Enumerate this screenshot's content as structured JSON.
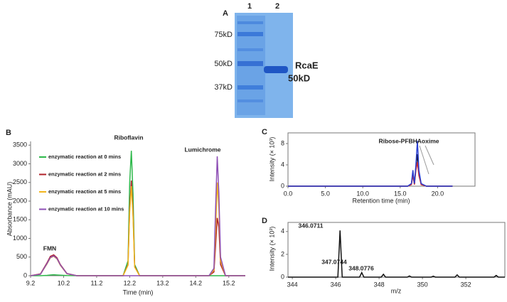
{
  "gel": {
    "panel": "A",
    "lanes": [
      "1",
      "2"
    ],
    "markers": [
      "75kD",
      "50kD",
      "37kD"
    ],
    "band_label": [
      "RcaE",
      "50kD"
    ]
  },
  "chart_data": [
    {
      "type": "line",
      "panel": "B",
      "xlabel": "Time (min)",
      "ylabel": "Absorbance (mAU)",
      "x": [
        9.2,
        9.5,
        9.7,
        9.8,
        9.9,
        10.0,
        10.1,
        10.3,
        10.6,
        12.0,
        12.15,
        12.2,
        12.25,
        12.3,
        12.35,
        12.5,
        14.6,
        14.75,
        14.8,
        14.85,
        14.9,
        14.95,
        15.1,
        15.7
      ],
      "series": [
        {
          "name": "enzymatic reaction at 0 mins",
          "color": "#2db84a",
          "values": [
            0,
            0,
            10,
            20,
            25,
            20,
            15,
            5,
            0,
            0,
            400,
            2500,
            3350,
            2200,
            300,
            0,
            0,
            0,
            0,
            0,
            0,
            0,
            0,
            0
          ]
        },
        {
          "name": "enzymatic reaction at 2 mins",
          "color": "#b0222a",
          "values": [
            0,
            50,
            350,
            520,
            560,
            480,
            300,
            60,
            0,
            0,
            300,
            1800,
            2550,
            1700,
            250,
            0,
            0,
            100,
            800,
            1550,
            1300,
            300,
            0,
            0
          ]
        },
        {
          "name": "enzymatic reaction at 5 mins",
          "color": "#f2b51c",
          "values": [
            0,
            40,
            320,
            480,
            520,
            450,
            280,
            50,
            0,
            0,
            280,
            1700,
            2400,
            1600,
            230,
            0,
            0,
            150,
            1200,
            2500,
            1800,
            400,
            0,
            0
          ]
        },
        {
          "name": "enzymatic reaction at 10 mins",
          "color": "#8e4fb5",
          "values": [
            0,
            40,
            330,
            490,
            530,
            460,
            290,
            55,
            0,
            0,
            0,
            0,
            0,
            0,
            0,
            0,
            0,
            200,
            1800,
            3200,
            2200,
            500,
            0,
            0
          ]
        }
      ],
      "annotations": [
        "FMN",
        "Riboflavin",
        "Lumichrome"
      ],
      "xlim": [
        9.2,
        15.7
      ],
      "xticks": [
        9.2,
        10.2,
        11.2,
        12.2,
        13.2,
        14.2,
        15.2
      ],
      "ylim": [
        0,
        3600
      ],
      "yticks": [
        0,
        500,
        1000,
        1500,
        2000,
        2500,
        3000,
        3500
      ],
      "legend": "upper left",
      "frame": false
    },
    {
      "type": "line",
      "panel": "C",
      "xlabel": "Retention time (min)",
      "ylabel": "Intensity (× 10³)",
      "x": [
        0,
        16,
        16.5,
        16.7,
        16.9,
        17.1,
        17.3,
        17.5,
        17.8,
        18.5,
        22
      ],
      "series": [
        {
          "color": "#111111",
          "values": [
            0,
            0,
            0.4,
            2.5,
            0.4,
            3.5,
            6,
            2.5,
            0.4,
            0,
            0
          ]
        },
        {
          "color": "#d22a2a",
          "values": [
            0,
            0,
            0.3,
            2,
            0.3,
            3,
            4.5,
            2,
            0.3,
            0,
            0
          ]
        },
        {
          "color": "#2a3fd2",
          "values": [
            0,
            0,
            0.5,
            3,
            0.5,
            4,
            8.5,
            3,
            0.5,
            0,
            0
          ]
        }
      ],
      "annotations": [
        "Ribose-PFBHAoxime"
      ],
      "xlim": [
        0,
        25
      ],
      "xticks": [
        {
          "value": 0,
          "label": "0.0"
        },
        {
          "value": 5,
          "label": "5.0"
        },
        {
          "value": 10,
          "label": "10.0"
        },
        {
          "value": 15,
          "label": "15.0"
        },
        {
          "value": 20,
          "label": "20.0"
        }
      ],
      "ylim": [
        0,
        10
      ],
      "yticks": [
        0,
        4,
        8
      ],
      "frame": true
    },
    {
      "type": "line",
      "panel": "D",
      "xlabel": "m/z",
      "ylabel": "Intensity (× 10³)",
      "x": [
        343.8,
        346.1,
        346.2,
        346.3,
        347.1,
        347.2,
        347.3,
        348.1,
        348.2,
        348.3,
        349.3,
        349.4,
        349.5,
        350.4,
        350.5,
        350.6,
        351.5,
        351.6,
        351.7,
        353.3,
        353.4,
        353.5,
        353.8
      ],
      "series": [
        {
          "color": "#111111",
          "values": [
            0,
            0,
            4.1,
            0,
            0,
            0.4,
            0,
            0,
            0.25,
            0,
            0,
            0.1,
            0,
            0,
            0.08,
            0,
            0,
            0.2,
            0,
            0,
            0.15,
            0,
            0
          ]
        }
      ],
      "annotations": [
        "346.0711",
        "347.0744",
        "348.0776"
      ],
      "xlim": [
        343.8,
        353.8
      ],
      "xticks": [
        344,
        346,
        348,
        350,
        352
      ],
      "ylim": [
        0,
        4.8
      ],
      "yticks": [
        0,
        2,
        4
      ],
      "frame": true
    }
  ]
}
